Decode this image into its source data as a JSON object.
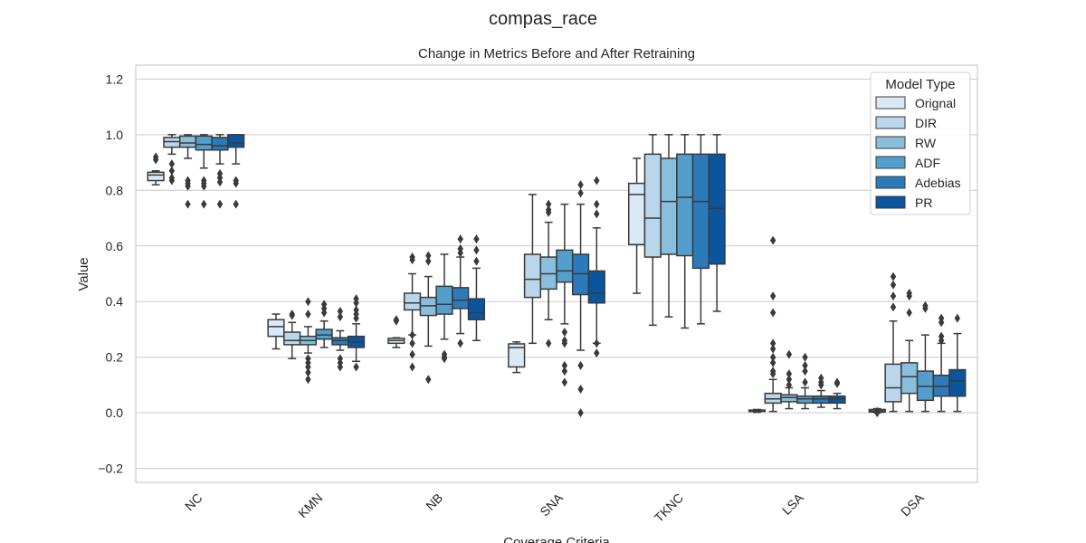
{
  "chart_data": {
    "type": "box",
    "suptitle": "compas_race",
    "title": "Change in Metrics Before and After Retraining",
    "xlabel": "Coverage Criteria",
    "ylabel": "Value",
    "ylim": [
      -0.25,
      1.25
    ],
    "yticks": [
      -0.2,
      0.0,
      0.2,
      0.4,
      0.6,
      0.8,
      1.0,
      1.2
    ],
    "ytick_labels": [
      "−0.2",
      "0.0",
      "0.2",
      "0.4",
      "0.6",
      "0.8",
      "1.0",
      "1.2"
    ],
    "grid": true,
    "legend": {
      "title": "Model Type",
      "placement": "top-right"
    },
    "categories": [
      "NC",
      "KMN",
      "NB",
      "SNA",
      "TKNC",
      "LSA",
      "DSA"
    ],
    "series": [
      {
        "name": "Orignal",
        "color": "#dbe9f6",
        "boxes": [
          {
            "whislo": 0.82,
            "q1": 0.835,
            "med": 0.855,
            "q3": 0.865,
            "whishi": 0.87,
            "fliers": [
              0.91,
              0.92
            ]
          },
          {
            "whislo": 0.23,
            "q1": 0.275,
            "med": 0.31,
            "q3": 0.335,
            "whishi": 0.355,
            "fliers": []
          },
          {
            "whislo": 0.235,
            "q1": 0.25,
            "med": 0.26,
            "q3": 0.268,
            "whishi": 0.27,
            "fliers": [
              0.33,
              0.335
            ]
          },
          {
            "whislo": 0.145,
            "q1": 0.165,
            "med": 0.235,
            "q3": 0.248,
            "whishi": 0.255,
            "fliers": []
          },
          {
            "whislo": 0.43,
            "q1": 0.605,
            "med": 0.785,
            "q3": 0.825,
            "whishi": 0.915,
            "fliers": []
          },
          {
            "whislo": 0.002,
            "q1": 0.005,
            "med": 0.007,
            "q3": 0.01,
            "whishi": 0.012,
            "fliers": []
          },
          {
            "whislo": 0.0,
            "q1": 0.003,
            "med": 0.007,
            "q3": 0.012,
            "whishi": 0.015,
            "fliers": [
              0.0,
              0.005
            ]
          }
        ]
      },
      {
        "name": "DIR",
        "color": "#bad6eb",
        "boxes": [
          {
            "whislo": 0.93,
            "q1": 0.955,
            "med": 0.975,
            "q3": 0.99,
            "whishi": 1.0,
            "fliers": [
              0.895,
              0.87,
              0.845,
              0.835
            ]
          },
          {
            "whislo": 0.195,
            "q1": 0.245,
            "med": 0.26,
            "q3": 0.29,
            "whishi": 0.325,
            "fliers": [
              0.355,
              0.35
            ]
          },
          {
            "whislo": 0.28,
            "q1": 0.37,
            "med": 0.395,
            "q3": 0.43,
            "whishi": 0.5,
            "fliers": [
              0.56,
              0.55,
              0.28,
              0.25,
              0.21,
              0.165
            ]
          },
          {
            "whislo": 0.25,
            "q1": 0.415,
            "med": 0.48,
            "q3": 0.57,
            "whishi": 0.785,
            "fliers": []
          },
          {
            "whislo": 0.315,
            "q1": 0.56,
            "med": 0.7,
            "q3": 0.93,
            "whishi": 1.0,
            "fliers": []
          },
          {
            "whislo": 0.005,
            "q1": 0.035,
            "med": 0.05,
            "q3": 0.07,
            "whishi": 0.12,
            "fliers": [
              0.62,
              0.42,
              0.36,
              0.25,
              0.23,
              0.2,
              0.18,
              0.15,
              0.14
            ]
          },
          {
            "whislo": 0.005,
            "q1": 0.04,
            "med": 0.09,
            "q3": 0.175,
            "whishi": 0.33,
            "fliers": [
              0.49,
              0.46,
              0.42,
              0.38
            ]
          }
        ]
      },
      {
        "name": "RW",
        "color": "#89bedc",
        "boxes": [
          {
            "whislo": 0.915,
            "q1": 0.955,
            "med": 0.97,
            "q3": 0.995,
            "whishi": 1.0,
            "fliers": [
              0.835,
              0.825,
              0.815,
              0.75
            ]
          },
          {
            "whislo": 0.215,
            "q1": 0.245,
            "med": 0.26,
            "q3": 0.275,
            "whishi": 0.31,
            "fliers": [
              0.4,
              0.355,
              0.195,
              0.18,
              0.165,
              0.145,
              0.12
            ]
          },
          {
            "whislo": 0.24,
            "q1": 0.35,
            "med": 0.385,
            "q3": 0.415,
            "whishi": 0.49,
            "fliers": [
              0.565,
              0.545,
              0.12
            ]
          },
          {
            "whislo": 0.335,
            "q1": 0.445,
            "med": 0.5,
            "q3": 0.56,
            "whishi": 0.685,
            "fliers": [
              0.75,
              0.73,
              0.72,
              0.25
            ]
          },
          {
            "whislo": 0.345,
            "q1": 0.57,
            "med": 0.76,
            "q3": 0.915,
            "whishi": 1.0,
            "fliers": []
          },
          {
            "whislo": 0.015,
            "q1": 0.04,
            "med": 0.055,
            "q3": 0.065,
            "whishi": 0.09,
            "fliers": [
              0.21,
              0.14,
              0.12,
              0.1
            ]
          },
          {
            "whislo": 0.005,
            "q1": 0.07,
            "med": 0.13,
            "q3": 0.18,
            "whishi": 0.26,
            "fliers": [
              0.43,
              0.42,
              0.36
            ]
          }
        ]
      },
      {
        "name": "ADF",
        "color": "#539ecd",
        "boxes": [
          {
            "whislo": 0.88,
            "q1": 0.945,
            "med": 0.965,
            "q3": 0.995,
            "whishi": 1.0,
            "fliers": [
              0.835,
              0.825,
              0.815,
              0.75
            ]
          },
          {
            "whislo": 0.235,
            "q1": 0.265,
            "med": 0.28,
            "q3": 0.3,
            "whishi": 0.33,
            "fliers": [
              0.39,
              0.375,
              0.36
            ]
          },
          {
            "whislo": 0.265,
            "q1": 0.355,
            "med": 0.39,
            "q3": 0.455,
            "whishi": 0.57,
            "fliers": [
              0.21,
              0.2,
              0.195
            ]
          },
          {
            "whislo": 0.32,
            "q1": 0.47,
            "med": 0.51,
            "q3": 0.585,
            "whishi": 0.75,
            "fliers": [
              0.29,
              0.26,
              0.25,
              0.17,
              0.15,
              0.11
            ]
          },
          {
            "whislo": 0.305,
            "q1": 0.565,
            "med": 0.775,
            "q3": 0.93,
            "whishi": 1.0,
            "fliers": []
          },
          {
            "whislo": 0.015,
            "q1": 0.035,
            "med": 0.05,
            "q3": 0.06,
            "whishi": 0.09,
            "fliers": [
              0.2,
              0.17,
              0.15,
              0.11
            ]
          },
          {
            "whislo": 0.005,
            "q1": 0.045,
            "med": 0.095,
            "q3": 0.15,
            "whishi": 0.28,
            "fliers": [
              0.385,
              0.375
            ]
          }
        ]
      },
      {
        "name": "Adebias",
        "color": "#2b7bba",
        "boxes": [
          {
            "whislo": 0.895,
            "q1": 0.945,
            "med": 0.96,
            "q3": 0.99,
            "whishi": 1.0,
            "fliers": [
              0.86,
              0.845,
              0.83,
              0.75
            ]
          },
          {
            "whislo": 0.225,
            "q1": 0.245,
            "med": 0.26,
            "q3": 0.27,
            "whishi": 0.295,
            "fliers": [
              0.365,
              0.345,
              0.195,
              0.18,
              0.165
            ]
          },
          {
            "whislo": 0.285,
            "q1": 0.375,
            "med": 0.405,
            "q3": 0.45,
            "whishi": 0.56,
            "fliers": [
              0.625,
              0.59,
              0.575,
              0.25
            ]
          },
          {
            "whislo": 0.225,
            "q1": 0.425,
            "med": 0.5,
            "q3": 0.57,
            "whishi": 0.75,
            "fliers": [
              0.82,
              0.79,
              0.17,
              0.085,
              0.0
            ]
          },
          {
            "whislo": 0.32,
            "q1": 0.52,
            "med": 0.76,
            "q3": 0.93,
            "whishi": 1.0,
            "fliers": []
          },
          {
            "whislo": 0.02,
            "q1": 0.035,
            "med": 0.05,
            "q3": 0.06,
            "whishi": 0.08,
            "fliers": [
              0.125,
              0.11,
              0.1
            ]
          },
          {
            "whislo": 0.005,
            "q1": 0.06,
            "med": 0.095,
            "q3": 0.135,
            "whishi": 0.25,
            "fliers": [
              0.34,
              0.325,
              0.275,
              0.26
            ]
          }
        ]
      },
      {
        "name": "PR",
        "color": "#0b559f",
        "boxes": [
          {
            "whislo": 0.895,
            "q1": 0.955,
            "med": 0.97,
            "q3": 1.0,
            "whishi": 1.0,
            "fliers": [
              0.835,
              0.825,
              0.75
            ]
          },
          {
            "whislo": 0.185,
            "q1": 0.235,
            "med": 0.255,
            "q3": 0.275,
            "whishi": 0.32,
            "fliers": [
              0.41,
              0.395,
              0.37,
              0.355,
              0.34,
              0.165
            ]
          },
          {
            "whislo": 0.26,
            "q1": 0.335,
            "med": 0.36,
            "q3": 0.41,
            "whishi": 0.52,
            "fliers": [
              0.625,
              0.585,
              0.545
            ]
          },
          {
            "whislo": 0.25,
            "q1": 0.395,
            "med": 0.43,
            "q3": 0.51,
            "whishi": 0.665,
            "fliers": [
              0.835,
              0.75,
              0.715,
              0.25,
              0.215
            ]
          },
          {
            "whislo": 0.365,
            "q1": 0.535,
            "med": 0.735,
            "q3": 0.93,
            "whishi": 1.0,
            "fliers": []
          },
          {
            "whislo": 0.015,
            "q1": 0.035,
            "med": 0.05,
            "q3": 0.06,
            "whishi": 0.07,
            "fliers": [
              0.11,
              0.105
            ]
          },
          {
            "whislo": 0.005,
            "q1": 0.06,
            "med": 0.115,
            "q3": 0.155,
            "whishi": 0.285,
            "fliers": [
              0.34
            ]
          }
        ]
      }
    ],
    "style": {
      "box_edge": "#3a3a3a",
      "grid_color": "#cccccc",
      "axes_edge": "#cccccc",
      "text": "#262626"
    }
  }
}
